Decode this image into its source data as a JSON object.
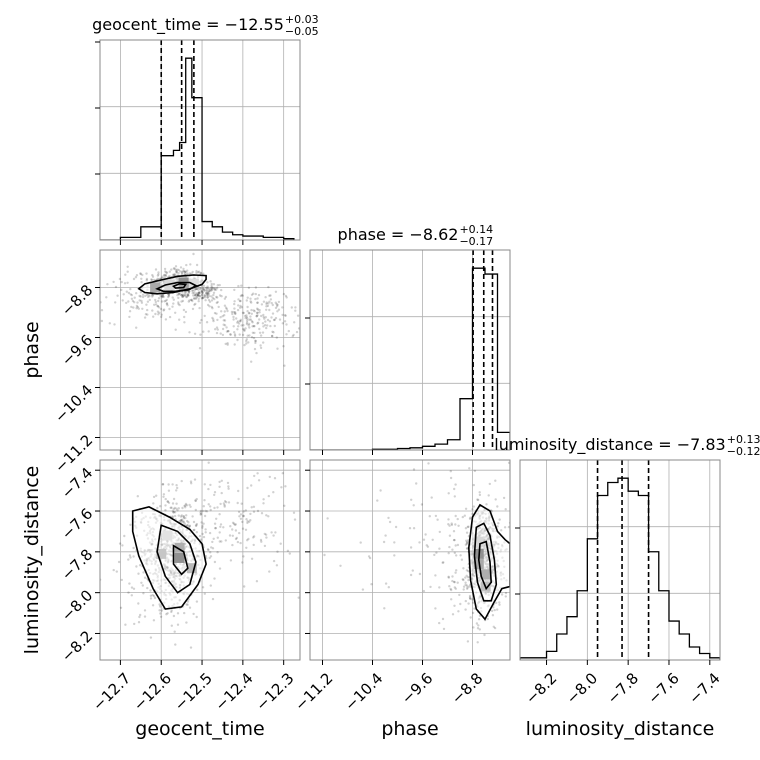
{
  "chart_data": {
    "type": "corner",
    "parameters": [
      "geocent_time",
      "phase",
      "luminosity_distance"
    ],
    "axis_labels": [
      "geocent_time",
      "phase",
      "luminosity_distance"
    ],
    "titles": [
      {
        "name": "geocent_time",
        "prefix": "geocent_time = ",
        "median": "−12.55",
        "plus": "+0.03",
        "minus": "−0.05"
      },
      {
        "name": "phase",
        "prefix": "phase = ",
        "median": "−8.62",
        "plus": "+0.14",
        "minus": "−0.17"
      },
      {
        "name": "luminosity_distance",
        "prefix": "luminosity_distance = ",
        "median": "−7.83",
        "plus": "+0.13",
        "minus": "−0.12"
      }
    ],
    "ranges": [
      [
        -12.75,
        -12.26
      ],
      [
        -11.4,
        -8.2
      ],
      [
        -8.33,
        -7.35
      ]
    ],
    "ticks": [
      [
        {
          "v": -12.7,
          "label": "−12.7"
        },
        {
          "v": -12.6,
          "label": "−12.6"
        },
        {
          "v": -12.5,
          "label": "−12.5"
        },
        {
          "v": -12.4,
          "label": "−12.4"
        },
        {
          "v": -12.3,
          "label": "−12.3"
        }
      ],
      [
        {
          "v": -11.2,
          "label": "−11.2"
        },
        {
          "v": -10.4,
          "label": "−10.4"
        },
        {
          "v": -9.6,
          "label": "−9.6"
        },
        {
          "v": -8.8,
          "label": "−8.8"
        }
      ],
      [
        {
          "v": -8.2,
          "label": "−8.2"
        },
        {
          "v": -8.0,
          "label": "−8.0"
        },
        {
          "v": -7.8,
          "label": "−7.8"
        },
        {
          "v": -7.6,
          "label": "−7.6"
        },
        {
          "v": -7.4,
          "label": "−7.4"
        }
      ]
    ],
    "quantiles": [
      [
        -12.6,
        -12.55,
        -12.52
      ],
      [
        -8.79,
        -8.62,
        -8.48
      ],
      [
        -7.95,
        -7.83,
        -7.7
      ]
    ],
    "histograms": [
      {
        "edges": [
          -12.75,
          -12.7,
          -12.65,
          -12.6,
          -12.57,
          -12.555,
          -12.54,
          -12.525,
          -12.5,
          -12.475,
          -12.45,
          -12.425,
          -12.4,
          -12.35,
          -12.3,
          -12.275
        ],
        "counts": [
          0,
          1,
          5,
          32,
          34,
          37,
          69,
          54,
          7,
          5,
          3,
          2,
          1.5,
          1,
          0.5
        ]
      },
      {
        "edges": [
          -11.4,
          -11.2,
          -11.0,
          -10.8,
          -10.6,
          -10.4,
          -10.2,
          -10.0,
          -9.8,
          -9.6,
          -9.4,
          -9.2,
          -9.0,
          -8.8,
          -8.6,
          -8.4,
          -8.2
        ],
        "counts": [
          0,
          0,
          0,
          0,
          0,
          0.5,
          0.5,
          1,
          1.5,
          2.5,
          4,
          7,
          35,
          124,
          120,
          12
        ]
      },
      {
        "edges": [
          -8.33,
          -8.2,
          -8.15,
          -8.1,
          -8.05,
          -8.0,
          -7.95,
          -7.9,
          -7.85,
          -7.8,
          -7.75,
          -7.7,
          -7.65,
          -7.6,
          -7.55,
          -7.5,
          -7.45,
          -7.4,
          -7.35
        ],
        "counts": [
          0.5,
          2,
          6,
          10,
          16,
          28,
          38,
          41,
          42,
          39,
          38,
          25,
          16,
          9,
          6,
          3,
          1.5,
          0.5
        ]
      }
    ],
    "pairs": [
      {
        "x": "geocent_time",
        "y": "phase",
        "blobs": [
          {
            "cx": -12.56,
            "cy": -8.72,
            "sx": 0.035,
            "sy": 0.12,
            "w": 0.38
          },
          {
            "cx": -12.5,
            "cy": -8.9,
            "sx": 0.02,
            "sy": 0.07,
            "w": 0.12
          },
          {
            "cx": -12.38,
            "cy": -9.3,
            "sx": 0.06,
            "sy": 0.25,
            "w": 0.3
          },
          {
            "cx": -12.62,
            "cy": -8.95,
            "sx": 0.06,
            "sy": 0.2,
            "w": 0.2
          }
        ],
        "contours": [
          [
            [
              -12.655,
              -8.82
            ],
            [
              -12.64,
              -8.74
            ],
            [
              -12.6,
              -8.68
            ],
            [
              -12.56,
              -8.62
            ],
            [
              -12.52,
              -8.6
            ],
            [
              -12.49,
              -8.61
            ],
            [
              -12.49,
              -8.67
            ],
            [
              -12.5,
              -8.75
            ],
            [
              -12.53,
              -8.82
            ],
            [
              -12.57,
              -8.88
            ],
            [
              -12.61,
              -8.9
            ],
            [
              -12.64,
              -8.88
            ]
          ],
          [
            [
              -12.61,
              -8.82
            ],
            [
              -12.59,
              -8.76
            ],
            [
              -12.56,
              -8.72
            ],
            [
              -12.53,
              -8.72
            ],
            [
              -12.515,
              -8.77
            ],
            [
              -12.53,
              -8.83
            ],
            [
              -12.565,
              -8.86
            ],
            [
              -12.595,
              -8.86
            ]
          ],
          [
            [
              -12.57,
              -8.78
            ],
            [
              -12.555,
              -8.74
            ],
            [
              -12.54,
              -8.75
            ],
            [
              -12.545,
              -8.8
            ],
            [
              -12.565,
              -8.81
            ]
          ]
        ],
        "pixels": [
          {
            "x": -12.545,
            "y": -8.72,
            "v": 0.95
          },
          {
            "x": -12.545,
            "y": -8.78,
            "v": 0.8
          },
          {
            "x": -12.615,
            "y": -8.8,
            "v": 0.75
          },
          {
            "x": -12.58,
            "y": -8.76,
            "v": 0.35
          },
          {
            "x": -12.52,
            "y": -8.74,
            "v": 0.3
          }
        ]
      },
      {
        "x": "geocent_time",
        "y": "luminosity_distance",
        "blobs": [
          {
            "cx": -12.57,
            "cy": -7.8,
            "sx": 0.04,
            "sy": 0.13,
            "w": 0.6
          },
          {
            "cx": -12.45,
            "cy": -7.65,
            "sx": 0.09,
            "sy": 0.13,
            "w": 0.25
          },
          {
            "cx": -12.6,
            "cy": -7.9,
            "sx": 0.05,
            "sy": 0.15,
            "w": 0.15
          }
        ],
        "contours": [
          [
            [
              -12.67,
              -7.6
            ],
            [
              -12.63,
              -7.58
            ],
            [
              -12.58,
              -7.63
            ],
            [
              -12.53,
              -7.69
            ],
            [
              -12.5,
              -7.76
            ],
            [
              -12.49,
              -7.86
            ],
            [
              -12.51,
              -7.96
            ],
            [
              -12.55,
              -8.07
            ],
            [
              -12.59,
              -8.08
            ],
            [
              -12.62,
              -7.98
            ],
            [
              -12.655,
              -7.82
            ],
            [
              -12.67,
              -7.7
            ]
          ],
          [
            [
              -12.6,
              -7.67
            ],
            [
              -12.56,
              -7.7
            ],
            [
              -12.53,
              -7.76
            ],
            [
              -12.515,
              -7.85
            ],
            [
              -12.53,
              -7.96
            ],
            [
              -12.56,
              -8.0
            ],
            [
              -12.59,
              -7.92
            ],
            [
              -12.61,
              -7.8
            ]
          ],
          [
            [
              -12.57,
              -7.77
            ],
            [
              -12.545,
              -7.8
            ],
            [
              -12.535,
              -7.88
            ],
            [
              -12.55,
              -7.91
            ],
            [
              -12.57,
              -7.86
            ]
          ]
        ],
        "pixels": [
          {
            "x": -12.555,
            "y": -7.83,
            "v": 0.95
          },
          {
            "x": -12.555,
            "y": -7.78,
            "v": 0.7
          },
          {
            "x": -12.525,
            "y": -7.88,
            "v": 0.6
          },
          {
            "x": -12.6,
            "y": -7.81,
            "v": 0.5
          },
          {
            "x": -12.585,
            "y": -7.72,
            "v": 0.25
          }
        ]
      },
      {
        "x": "phase",
        "y": "luminosity_distance",
        "blobs": [
          {
            "cx": -8.62,
            "cy": -7.83,
            "sx": 0.14,
            "sy": 0.13,
            "w": 0.7
          },
          {
            "cx": -9.6,
            "cy": -7.7,
            "sx": 0.7,
            "sy": 0.18,
            "w": 0.08
          },
          {
            "cx": -8.9,
            "cy": -7.85,
            "sx": 0.35,
            "sy": 0.16,
            "w": 0.12
          }
        ],
        "contours": [
          [
            [
              -8.8,
              -7.63
            ],
            [
              -8.68,
              -7.57
            ],
            [
              -8.52,
              -7.6
            ],
            [
              -8.4,
              -7.7
            ],
            [
              -8.28,
              -7.74
            ],
            [
              -8.2,
              -7.76
            ],
            [
              -8.2,
              -7.97
            ],
            [
              -8.33,
              -7.98
            ],
            [
              -8.46,
              -8.05
            ],
            [
              -8.6,
              -8.13
            ],
            [
              -8.74,
              -8.08
            ],
            [
              -8.83,
              -7.94
            ],
            [
              -8.86,
              -7.78
            ]
          ],
          [
            [
              -8.74,
              -7.68
            ],
            [
              -8.62,
              -7.66
            ],
            [
              -8.52,
              -7.72
            ],
            [
              -8.45,
              -7.84
            ],
            [
              -8.42,
              -7.96
            ],
            [
              -8.5,
              -8.04
            ],
            [
              -8.62,
              -8.04
            ],
            [
              -8.72,
              -7.95
            ],
            [
              -8.77,
              -7.82
            ]
          ],
          [
            [
              -8.68,
              -7.76
            ],
            [
              -8.58,
              -7.75
            ],
            [
              -8.52,
              -7.85
            ],
            [
              -8.5,
              -7.95
            ],
            [
              -8.58,
              -7.98
            ],
            [
              -8.66,
              -7.92
            ],
            [
              -8.7,
              -7.84
            ]
          ]
        ],
        "pixels": [
          {
            "x": -8.7,
            "y": -7.81,
            "v": 0.95
          },
          {
            "x": -8.7,
            "y": -7.86,
            "v": 0.75
          },
          {
            "x": -8.59,
            "y": -7.91,
            "v": 0.7
          },
          {
            "x": -8.59,
            "y": -7.97,
            "v": 0.55
          },
          {
            "x": -8.7,
            "y": -7.75,
            "v": 0.35
          }
        ]
      }
    ]
  }
}
